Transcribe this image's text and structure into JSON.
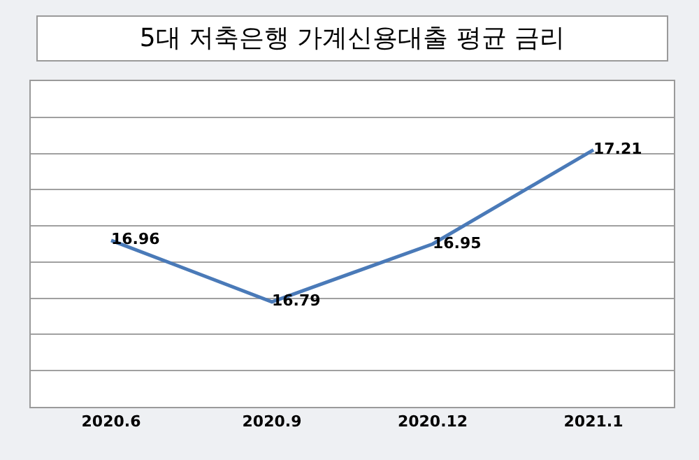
{
  "chart_data": {
    "type": "line",
    "title": "5대 저축은행 가계신용대출 평균 금리",
    "categories": [
      "2020.6",
      "2020.9",
      "2020.12",
      "2021.1"
    ],
    "series": [
      {
        "color": "#4a7ab8",
        "values": [
          16.96,
          16.79,
          16.95,
          17.21
        ]
      }
    ],
    "ylim": [
      16.5,
      17.4
    ],
    "yticks": [
      {
        "value": 16.5,
        "label": null
      },
      {
        "value": 16.6,
        "label": null
      },
      {
        "value": 16.7,
        "label": null
      },
      {
        "value": 16.8,
        "label": null
      },
      {
        "value": 16.9,
        "label": null
      },
      {
        "value": 17.0,
        "label": null
      },
      {
        "value": 17.1,
        "label": null
      },
      {
        "value": 17.2,
        "label": null
      },
      {
        "value": 17.3,
        "label": null
      },
      {
        "value": 17.4,
        "label": null
      }
    ],
    "tick_labels": "x",
    "grid": "y",
    "data_labels": true,
    "marker": "none",
    "line_style": "solid",
    "legend": false
  }
}
